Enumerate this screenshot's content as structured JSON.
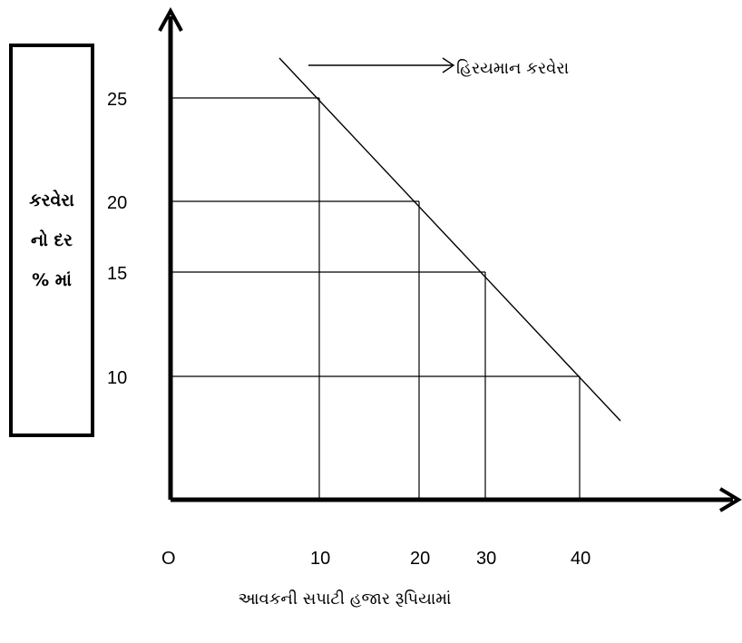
{
  "chart_data": {
    "type": "line",
    "title": "",
    "ylabel_lines": [
      "કરવેરા",
      "નો દર",
      "% માં"
    ],
    "xlabel": "આવકની સપાટી હજાર રૂપિયામાં",
    "origin_label": "O",
    "x_ticks": [
      "10",
      "20",
      "30",
      "40"
    ],
    "y_ticks": [
      "25",
      "20",
      "15",
      "10"
    ],
    "series": [
      {
        "name": "હિરયમાન કરવેરા",
        "x": [
          10,
          20,
          30,
          40
        ],
        "y": [
          25,
          20,
          15,
          10
        ]
      }
    ],
    "annotation": "હિરયમાન કરવેરા",
    "grid": false
  }
}
